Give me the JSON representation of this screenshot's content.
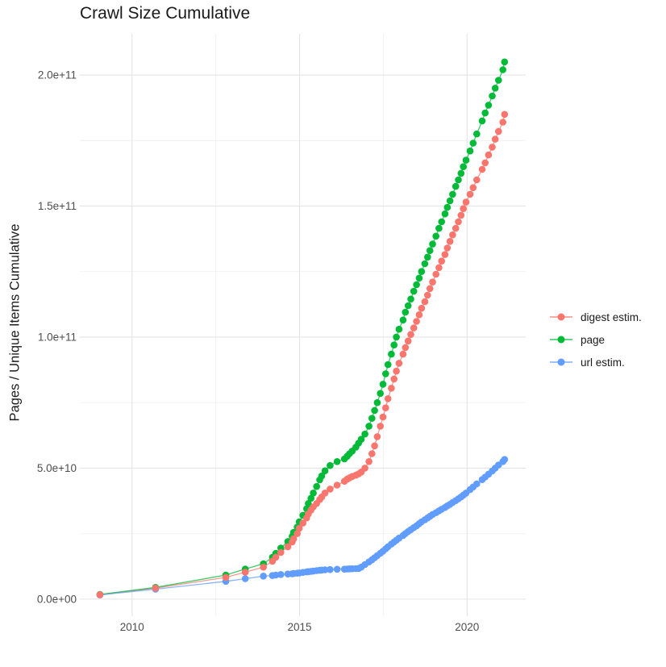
{
  "title": "Crawl Size Cumulative",
  "y_axis_label": "Pages / Unique Items Cumulative",
  "x_axis_label": "",
  "legend": {
    "position": "right",
    "items": [
      {
        "label": "digest estim.",
        "color": "#F8766D"
      },
      {
        "label": "page",
        "color": "#00BA38"
      },
      {
        "label": "url estim.",
        "color": "#619CFF"
      }
    ]
  },
  "colors": {
    "background": "#FFFFFF",
    "grid_major": "#E4E4E4",
    "grid_minor": "#F0F0F0",
    "tick_label": "#4D4D4D",
    "text": "#1A1A1A"
  },
  "chart_data": {
    "type": "scatter",
    "title": "Crawl Size Cumulative",
    "xlabel": "",
    "ylabel": "Pages / Unique Items Cumulative",
    "grid": "on",
    "legend_position": "right",
    "y_scale_note": "values in billions (1e9); e.g. 205 = 2.05e11",
    "xlim": [
      2008.44,
      2021.75
    ],
    "ylim": [
      -6.5,
      215.7
    ],
    "xticks": [
      {
        "value": 2010,
        "label": "2010"
      },
      {
        "value": 2015,
        "label": "2015"
      },
      {
        "value": 2020,
        "label": "2020"
      }
    ],
    "yticks": [
      {
        "value": 0,
        "label": "0.0e+00"
      },
      {
        "value": 50,
        "label": "5.0e+10"
      },
      {
        "value": 100,
        "label": "1.0e+11"
      },
      {
        "value": 150,
        "label": "1.5e+11"
      },
      {
        "value": 200,
        "label": "2.0e+11"
      }
    ],
    "x_minor_ticks": [
      2012.5,
      2017.5
    ],
    "y_minor_ticks": [
      25,
      75,
      125,
      175
    ],
    "x": [
      2009.04,
      2010.7,
      2012.8,
      2013.38,
      2013.92,
      2014.19,
      2014.29,
      2014.44,
      2014.65,
      2014.78,
      2014.82,
      2014.93,
      2014.99,
      2015.1,
      2015.21,
      2015.26,
      2015.34,
      2015.41,
      2015.51,
      2015.6,
      2015.66,
      2015.76,
      2015.91,
      2016.12,
      2016.34,
      2016.42,
      2016.49,
      2016.57,
      2016.68,
      2016.76,
      2016.84,
      2016.95,
      2017.07,
      2017.16,
      2017.24,
      2017.32,
      2017.41,
      2017.49,
      2017.57,
      2017.64,
      2017.74,
      2017.82,
      2017.89,
      2017.97,
      2018.09,
      2018.16,
      2018.24,
      2018.32,
      2018.41,
      2018.49,
      2018.57,
      2018.64,
      2018.74,
      2018.82,
      2018.89,
      2018.97,
      2019.07,
      2019.16,
      2019.24,
      2019.34,
      2019.41,
      2019.49,
      2019.57,
      2019.66,
      2019.74,
      2019.82,
      2019.89,
      2019.97,
      2020.09,
      2020.18,
      2020.29,
      2020.45,
      2020.54,
      2020.64,
      2020.75,
      2020.84,
      2020.94,
      2021.07,
      2021.12
    ],
    "series": [
      {
        "name": "digest estim.",
        "color": "#F8766D",
        "values": [
          1.7,
          4.2,
          8.3,
          10.3,
          12.2,
          14.5,
          16,
          17.8,
          20,
          21.8,
          23,
          25,
          27,
          29,
          31,
          32.5,
          34,
          35.2,
          36.5,
          38,
          39,
          40.5,
          42,
          43.5,
          45,
          45.8,
          46.3,
          46.8,
          47.3,
          47.8,
          48.5,
          50,
          52.5,
          55.5,
          58.5,
          62,
          66,
          69.5,
          73,
          76.5,
          80.5,
          84,
          87,
          90,
          93.5,
          96,
          98.5,
          101,
          103.5,
          106,
          108.5,
          111,
          113.5,
          116,
          118.5,
          121,
          124,
          126.5,
          129,
          131.5,
          134,
          136.5,
          139,
          141.5,
          144,
          146.5,
          149,
          151.5,
          154.5,
          157,
          160,
          164,
          166.5,
          169.5,
          172.5,
          175.5,
          178.5,
          182,
          185
        ]
      },
      {
        "name": "page",
        "color": "#00BA38",
        "values": [
          1.8,
          4.5,
          9.2,
          11.5,
          13.5,
          16,
          17.5,
          19.5,
          22,
          24,
          25.5,
          27.5,
          29.5,
          32,
          34.5,
          36.5,
          38.5,
          40.5,
          43,
          45.5,
          47,
          49,
          51,
          52.5,
          53.5,
          54.5,
          55.5,
          56.5,
          58,
          59.5,
          61,
          63,
          66,
          69,
          72,
          75,
          78.5,
          82,
          86,
          89.5,
          93.5,
          97,
          100,
          103,
          106.5,
          109.5,
          112,
          114.5,
          117.5,
          120,
          122.5,
          125,
          128,
          130.5,
          133,
          135.5,
          138.5,
          141.5,
          144,
          147,
          149.5,
          152,
          154.5,
          157.5,
          160,
          162.5,
          165,
          167.5,
          171,
          174,
          177.5,
          182.5,
          185.5,
          188.5,
          192,
          195,
          198,
          202,
          205
        ]
      },
      {
        "name": "url estim.",
        "color": "#619CFF",
        "values": [
          1.6,
          3.8,
          6.8,
          7.8,
          8.8,
          9.0,
          9.2,
          9.4,
          9.6,
          9.7,
          9.8,
          9.9,
          10.0,
          10.2,
          10.4,
          10.5,
          10.6,
          10.7,
          10.9,
          11.0,
          11.1,
          11.2,
          11.3,
          11.4,
          11.45,
          11.5,
          11.55,
          11.6,
          11.65,
          11.7,
          12.2,
          13.2,
          14.2,
          15.0,
          15.8,
          16.6,
          17.5,
          18.3,
          19.2,
          20.0,
          21.0,
          21.8,
          22.5,
          23.3,
          24.3,
          25.0,
          25.8,
          26.5,
          27.3,
          28.0,
          28.8,
          29.5,
          30.3,
          31.0,
          31.6,
          32.3,
          33.0,
          33.7,
          34.3,
          35.0,
          35.6,
          36.2,
          36.9,
          37.6,
          38.3,
          39.0,
          39.7,
          40.5,
          41.8,
          42.8,
          44.0,
          45.6,
          46.6,
          47.7,
          48.9,
          50.0,
          51.2,
          52.5,
          53.3
        ]
      }
    ]
  }
}
